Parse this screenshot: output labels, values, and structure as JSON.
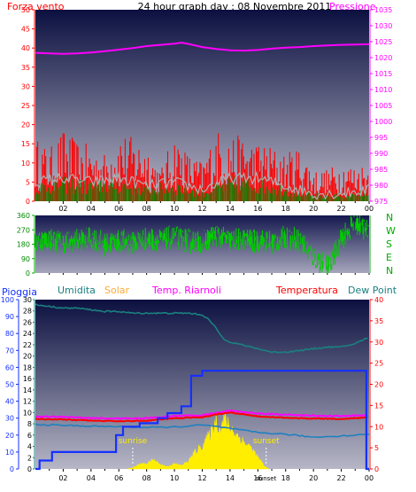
{
  "header": {
    "left_label": "Forza vento",
    "title": "24 hour graph day : 08 Novembre 2011",
    "right_label": "Pressione"
  },
  "colors": {
    "bg_top": "#0c1040",
    "bg_bottom": "#b6b6c6",
    "wind": "#ff0000",
    "wind_avg": "#b0b0b0",
    "wind_dark": "#008800",
    "pressure": "#ff00ff",
    "direction": "#00cc00",
    "rain": "#1530ff",
    "humidity": "#1a8080",
    "solar": "#ffee00",
    "indoor_temp": "#ff00ff",
    "temperature": "#ff0000",
    "dew_point": "#1f80c0"
  },
  "chart_data": [
    {
      "type": "line",
      "name": "wind-pressure",
      "title": "24 hour graph day : 08 Novembre 2011",
      "y_left_label": "Forza vento",
      "y_right_label": "Pressione",
      "y_left_ticks": [
        "0",
        "5",
        "10",
        "15",
        "20",
        "25",
        "30",
        "35",
        "40",
        "45",
        "50"
      ],
      "y_left_range": [
        0,
        50
      ],
      "y_right_ticks": [
        "975",
        "980",
        "985",
        "990",
        "995",
        "1000",
        "1005",
        "1010",
        "1015",
        "1020",
        "1025",
        "1030",
        "1035"
      ],
      "y_right_range": [
        975,
        1035
      ],
      "x_ticks": [
        "02",
        "04",
        "06",
        "08",
        "10",
        "12",
        "14",
        "16",
        "18",
        "20",
        "22",
        "00"
      ],
      "x_range": [
        0,
        24
      ],
      "pressure": {
        "x": [
          0,
          1,
          2,
          3,
          4,
          5,
          6,
          7,
          8,
          9,
          10,
          10.5,
          11,
          11.5,
          12,
          13,
          14,
          15,
          16,
          17,
          18,
          19,
          20,
          21,
          22,
          23,
          24
        ],
        "y": [
          1021.5,
          1021.3,
          1021.2,
          1021.3,
          1021.6,
          1022,
          1022.5,
          1023,
          1023.6,
          1024,
          1024.4,
          1024.7,
          1024.3,
          1023.8,
          1023.3,
          1022.7,
          1022.3,
          1022.2,
          1022.4,
          1022.8,
          1023.1,
          1023.3,
          1023.6,
          1023.8,
          1024,
          1024.1,
          1024.2
        ]
      },
      "wind_gust_envelope": {
        "x": [
          0,
          1,
          2,
          3,
          4,
          5,
          6,
          7,
          8,
          9,
          10,
          11,
          12,
          13,
          14,
          15,
          16,
          17,
          18,
          19,
          20,
          21,
          22,
          23,
          24
        ],
        "y": [
          16,
          13,
          18,
          15,
          14,
          12,
          18,
          16,
          15,
          8,
          17,
          12,
          10,
          18,
          17,
          16,
          15,
          14,
          12,
          14,
          8,
          8,
          10,
          9,
          10
        ]
      },
      "wind_avg": {
        "x": [
          0,
          2,
          4,
          6,
          8,
          10,
          12,
          14,
          16,
          18,
          20,
          22,
          24
        ],
        "y": [
          5,
          6,
          5,
          6,
          4,
          5,
          3,
          6,
          6,
          4,
          2,
          2,
          3
        ]
      }
    },
    {
      "type": "scatter",
      "name": "wind-direction",
      "y_ticks": [
        "0",
        "90",
        "180",
        "270",
        "360"
      ],
      "y_range": [
        0,
        360
      ],
      "right_labels": [
        "N",
        "W",
        "S",
        "E",
        "N"
      ],
      "direction": {
        "x": [
          0,
          1,
          2,
          3,
          4,
          5,
          6,
          7,
          8,
          9,
          10,
          11,
          12,
          13,
          14,
          15,
          16,
          17,
          18,
          19,
          20,
          21,
          22,
          23,
          24
        ],
        "y": [
          200,
          210,
          190,
          200,
          220,
          180,
          200,
          190,
          210,
          200,
          230,
          200,
          190,
          240,
          200,
          210,
          200,
          190,
          220,
          210,
          100,
          40,
          200,
          330,
          250
        ]
      }
    },
    {
      "type": "line",
      "name": "rain-humidity-temperature",
      "legend": [
        "Pioggia",
        "Umidita",
        "Solar",
        "Temp. Riarnoli",
        "Temperatura",
        "Dew Point"
      ],
      "y1_ticks": [
        "0",
        "10",
        "20",
        "30",
        "40",
        "50",
        "60",
        "70",
        "80",
        "90",
        "100"
      ],
      "y1_label": "Pioggia",
      "y2_ticks": [
        "0",
        "2",
        "4",
        "6",
        "8",
        "10",
        "12",
        "14",
        "16",
        "18",
        "20",
        "22",
        "24",
        "26",
        "28",
        "30"
      ],
      "y2_label": "Umidita",
      "y3_ticks": [
        "0",
        "5",
        "10",
        "15",
        "20",
        "25",
        "30",
        "35",
        "40"
      ],
      "y3_label": "Temperatura",
      "x_ticks": [
        "02",
        "04",
        "06",
        "08",
        "10",
        "12",
        "14",
        "16",
        "18",
        "20",
        "22",
        "00"
      ],
      "x_range": [
        0,
        24
      ],
      "annotations": [
        {
          "text": "sunrise",
          "x": 7.0
        },
        {
          "text": "sunset",
          "x": 16.6
        }
      ],
      "bottom_marker": "sunset",
      "rain": {
        "x": [
          0,
          0.3,
          0.8,
          1.2,
          5.5,
          5.8,
          6.3,
          7.5,
          8.8,
          9.5,
          10.5,
          11.2,
          12,
          14,
          16,
          18,
          20,
          22,
          23.7,
          23.8,
          24
        ],
        "y": [
          0,
          5,
          5,
          10,
          10,
          20,
          25,
          27,
          30,
          33,
          37,
          55,
          58,
          58,
          58,
          58,
          58,
          58,
          58,
          0,
          0
        ]
      },
      "humidity": {
        "x": [
          0,
          1,
          2,
          3,
          4,
          5,
          6,
          7,
          8,
          9,
          10,
          11,
          12,
          12.5,
          13,
          13.5,
          14,
          15,
          16,
          17,
          18,
          19,
          20,
          21,
          22,
          23,
          24
        ],
        "y": [
          97,
          96,
          95,
          95,
          94,
          93,
          93,
          92,
          92,
          92,
          92,
          92,
          91,
          88,
          83,
          77,
          75,
          73,
          71,
          69,
          69,
          70,
          71,
          72,
          72,
          74,
          78
        ]
      },
      "dew_point": {
        "x": [
          0,
          2,
          4,
          6,
          8,
          10,
          12,
          14,
          16,
          18,
          20,
          22,
          24
        ],
        "y": [
          10.5,
          10.3,
          10.1,
          10,
          9.8,
          9.9,
          10.4,
          9.6,
          8.6,
          8.2,
          7.5,
          7.8,
          8.2
        ]
      },
      "temperature": {
        "x": [
          0,
          2,
          4,
          6,
          8,
          10,
          12,
          13,
          14,
          15,
          16,
          18,
          20,
          22,
          24
        ],
        "y": [
          11.8,
          11.7,
          11.4,
          11.3,
          11.4,
          12,
          12.2,
          12.9,
          13.3,
          12.9,
          12.4,
          12.1,
          11.9,
          11.8,
          12.2
        ]
      },
      "indoor_temp": {
        "x": [
          0,
          2,
          4,
          6,
          8,
          10,
          12,
          14,
          16,
          18,
          20,
          22,
          24
        ],
        "y": [
          12.4,
          12.3,
          12,
          11.9,
          12,
          12.5,
          12.7,
          13.8,
          13.1,
          12.8,
          12.6,
          12.5,
          12.7
        ]
      },
      "solar": {
        "x": [
          6.6,
          7,
          7.5,
          8,
          8.5,
          9,
          9.5,
          10,
          10.5,
          11,
          11.5,
          12,
          12.5,
          13,
          13.3,
          13.6,
          14,
          14.5,
          15,
          15.5,
          16,
          16.5,
          16.8
        ],
        "y": [
          0,
          0.3,
          1.2,
          1.4,
          2.3,
          1.1,
          0.6,
          1.3,
          0.9,
          1.9,
          4.3,
          5.8,
          8.2,
          12.1,
          9.8,
          12.4,
          10.3,
          8.3,
          6.6,
          5.3,
          2.9,
          0.6,
          0
        ]
      }
    }
  ]
}
